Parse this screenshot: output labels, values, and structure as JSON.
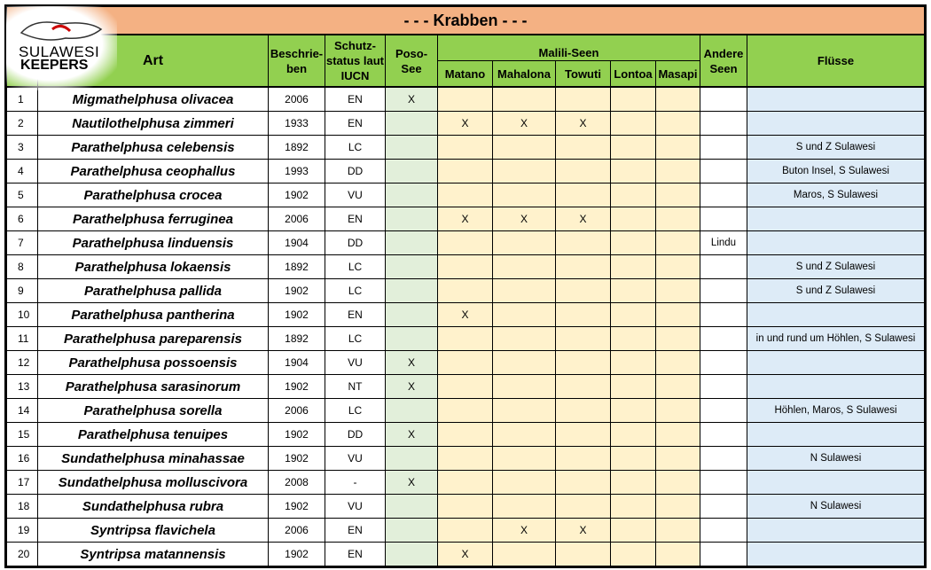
{
  "title": "- - -    Krabben    - - -",
  "logo": {
    "line1": "SULAWESI",
    "line2": "KEEPERS"
  },
  "headers": {
    "art": "Art",
    "beschrieben": "Beschrie-ben",
    "schutz": "Schutz-status laut IUCN",
    "poso": "Poso-See",
    "malili": "Malili-Seen",
    "matano": "Matano",
    "mahalona": "Mahalona",
    "towuti": "Towuti",
    "lontoa": "Lontoa",
    "masapi": "Masapi",
    "andere": "Andere Seen",
    "fluesse": "Flüsse"
  },
  "rows": [
    {
      "n": "1",
      "art": "Migmathelphusa olivacea",
      "year": "2006",
      "iucn": "EN",
      "poso": "X",
      "matano": "",
      "mahalona": "",
      "towuti": "",
      "lontoa": "",
      "masapi": "",
      "andere": "",
      "fluesse": ""
    },
    {
      "n": "2",
      "art": "Nautilothelphusa zimmeri",
      "year": "1933",
      "iucn": "EN",
      "poso": "",
      "matano": "X",
      "mahalona": "X",
      "towuti": "X",
      "lontoa": "",
      "masapi": "",
      "andere": "",
      "fluesse": ""
    },
    {
      "n": "3",
      "art": "Parathelphusa celebensis",
      "year": "1892",
      "iucn": "LC",
      "poso": "",
      "matano": "",
      "mahalona": "",
      "towuti": "",
      "lontoa": "",
      "masapi": "",
      "andere": "",
      "fluesse": "S und Z Sulawesi"
    },
    {
      "n": "4",
      "art": "Parathelphusa ceophallus",
      "year": "1993",
      "iucn": "DD",
      "poso": "",
      "matano": "",
      "mahalona": "",
      "towuti": "",
      "lontoa": "",
      "masapi": "",
      "andere": "",
      "fluesse": "Buton Insel, S Sulawesi"
    },
    {
      "n": "5",
      "art": "Parathelphusa crocea",
      "year": "1902",
      "iucn": "VU",
      "poso": "",
      "matano": "",
      "mahalona": "",
      "towuti": "",
      "lontoa": "",
      "masapi": "",
      "andere": "",
      "fluesse": "Maros, S Sulawesi"
    },
    {
      "n": "6",
      "art": "Parathelphusa ferruginea",
      "year": "2006",
      "iucn": "EN",
      "poso": "",
      "matano": "X",
      "mahalona": "X",
      "towuti": "X",
      "lontoa": "",
      "masapi": "",
      "andere": "",
      "fluesse": ""
    },
    {
      "n": "7",
      "art": "Parathelphusa linduensis",
      "year": "1904",
      "iucn": "DD",
      "poso": "",
      "matano": "",
      "mahalona": "",
      "towuti": "",
      "lontoa": "",
      "masapi": "",
      "andere": "Lindu",
      "fluesse": ""
    },
    {
      "n": "8",
      "art": "Parathelphusa lokaensis",
      "year": "1892",
      "iucn": "LC",
      "poso": "",
      "matano": "",
      "mahalona": "",
      "towuti": "",
      "lontoa": "",
      "masapi": "",
      "andere": "",
      "fluesse": "S und Z Sulawesi"
    },
    {
      "n": "9",
      "art": "Parathelphusa pallida",
      "year": "1902",
      "iucn": "LC",
      "poso": "",
      "matano": "",
      "mahalona": "",
      "towuti": "",
      "lontoa": "",
      "masapi": "",
      "andere": "",
      "fluesse": "S und Z Sulawesi"
    },
    {
      "n": "10",
      "art": "Parathelphusa pantherina",
      "year": "1902",
      "iucn": "EN",
      "poso": "",
      "matano": "X",
      "mahalona": "",
      "towuti": "",
      "lontoa": "",
      "masapi": "",
      "andere": "",
      "fluesse": ""
    },
    {
      "n": "11",
      "art": "Parathelphusa pareparensis",
      "year": "1892",
      "iucn": "LC",
      "poso": "",
      "matano": "",
      "mahalona": "",
      "towuti": "",
      "lontoa": "",
      "masapi": "",
      "andere": "",
      "fluesse": "in und rund um Höhlen, S Sulawesi"
    },
    {
      "n": "12",
      "art": "Parathelphusa possoensis",
      "year": "1904",
      "iucn": "VU",
      "poso": "X",
      "matano": "",
      "mahalona": "",
      "towuti": "",
      "lontoa": "",
      "masapi": "",
      "andere": "",
      "fluesse": ""
    },
    {
      "n": "13",
      "art": "Parathelphusa sarasinorum",
      "year": "1902",
      "iucn": "NT",
      "poso": "X",
      "matano": "",
      "mahalona": "",
      "towuti": "",
      "lontoa": "",
      "masapi": "",
      "andere": "",
      "fluesse": ""
    },
    {
      "n": "14",
      "art": "Parathelphusa sorella",
      "year": "2006",
      "iucn": "LC",
      "poso": "",
      "matano": "",
      "mahalona": "",
      "towuti": "",
      "lontoa": "",
      "masapi": "",
      "andere": "",
      "fluesse": "Höhlen, Maros, S Sulawesi"
    },
    {
      "n": "15",
      "art": "Parathelphusa tenuipes",
      "year": "1902",
      "iucn": "DD",
      "poso": "X",
      "matano": "",
      "mahalona": "",
      "towuti": "",
      "lontoa": "",
      "masapi": "",
      "andere": "",
      "fluesse": ""
    },
    {
      "n": "16",
      "art": "Sundathelphusa minahassae",
      "year": "1902",
      "iucn": "VU",
      "poso": "",
      "matano": "",
      "mahalona": "",
      "towuti": "",
      "lontoa": "",
      "masapi": "",
      "andere": "",
      "fluesse": "N Sulawesi"
    },
    {
      "n": "17",
      "art": "Sundathelphusa molluscivora",
      "year": "2008",
      "iucn": "-",
      "poso": "X",
      "matano": "",
      "mahalona": "",
      "towuti": "",
      "lontoa": "",
      "masapi": "",
      "andere": "",
      "fluesse": ""
    },
    {
      "n": "18",
      "art": "Sundathelphusa rubra",
      "year": "1902",
      "iucn": "VU",
      "poso": "",
      "matano": "",
      "mahalona": "",
      "towuti": "",
      "lontoa": "",
      "masapi": "",
      "andere": "",
      "fluesse": "N Sulawesi"
    },
    {
      "n": "19",
      "art": "Syntripsa flavichela",
      "year": "2006",
      "iucn": "EN",
      "poso": "",
      "matano": "",
      "mahalona": "X",
      "towuti": "X",
      "lontoa": "",
      "masapi": "",
      "andere": "",
      "fluesse": ""
    },
    {
      "n": "20",
      "art": "Syntripsa matannensis",
      "year": "1902",
      "iucn": "EN",
      "poso": "",
      "matano": "X",
      "mahalona": "",
      "towuti": "",
      "lontoa": "",
      "masapi": "",
      "andere": "",
      "fluesse": ""
    }
  ]
}
